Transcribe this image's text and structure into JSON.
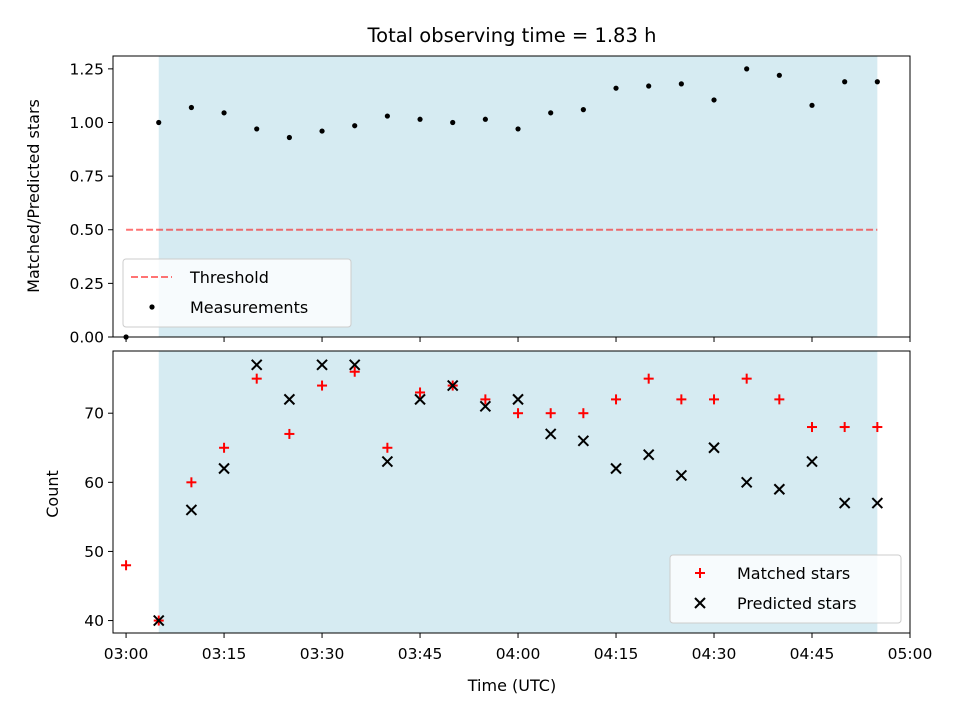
{
  "colors": {
    "shade": "#add8e6",
    "threshold": "#ff0000",
    "measurement": "#000000",
    "matched": "#ff0000",
    "predicted": "#000000"
  },
  "chart_data": [
    {
      "type": "scatter",
      "title": "Total observing time = 1.83 h",
      "xlabel": "",
      "ylabel": "Matched/Predicted stars",
      "ylim": [
        0,
        1.31
      ],
      "yticks": [
        "0.00",
        "0.25",
        "0.50",
        "0.75",
        "1.00",
        "1.25"
      ],
      "grid": false,
      "legend": "lower-left",
      "observing_window": [
        "03:05",
        "04:55"
      ],
      "threshold": {
        "name": "Threshold",
        "value": 0.5,
        "x_range": [
          "03:00",
          "04:55"
        ],
        "style": "dashed"
      },
      "series": [
        {
          "name": "Measurements",
          "marker": "dot",
          "points": [
            {
              "x": "03:00",
              "y": 0.0
            },
            {
              "x": "03:05",
              "y": 1.0
            },
            {
              "x": "03:10",
              "y": 1.07
            },
            {
              "x": "03:15",
              "y": 1.045
            },
            {
              "x": "03:20",
              "y": 0.97
            },
            {
              "x": "03:25",
              "y": 0.93
            },
            {
              "x": "03:30",
              "y": 0.96
            },
            {
              "x": "03:35",
              "y": 0.985
            },
            {
              "x": "03:40",
              "y": 1.03
            },
            {
              "x": "03:45",
              "y": 1.015
            },
            {
              "x": "03:50",
              "y": 1.0
            },
            {
              "x": "03:55",
              "y": 1.015
            },
            {
              "x": "04:00",
              "y": 0.97
            },
            {
              "x": "04:05",
              "y": 1.045
            },
            {
              "x": "04:10",
              "y": 1.06
            },
            {
              "x": "04:15",
              "y": 1.16
            },
            {
              "x": "04:20",
              "y": 1.17
            },
            {
              "x": "04:25",
              "y": 1.18
            },
            {
              "x": "04:30",
              "y": 1.105
            },
            {
              "x": "04:35",
              "y": 1.25
            },
            {
              "x": "04:40",
              "y": 1.22
            },
            {
              "x": "04:45",
              "y": 1.08
            },
            {
              "x": "04:50",
              "y": 1.19
            },
            {
              "x": "04:55",
              "y": 1.19
            }
          ]
        }
      ]
    },
    {
      "type": "scatter",
      "title": "",
      "xlabel": "Time (UTC)",
      "ylabel": "Count",
      "ylim": [
        38.2,
        79.0
      ],
      "yticks": [
        "40",
        "50",
        "60",
        "70"
      ],
      "xlim": [
        "02:58",
        "05:00"
      ],
      "xticks": [
        "03:00",
        "03:15",
        "03:30",
        "03:45",
        "04:00",
        "04:15",
        "04:30",
        "04:45",
        "05:00"
      ],
      "grid": false,
      "legend": "lower-right",
      "observing_window": [
        "03:05",
        "04:55"
      ],
      "series": [
        {
          "name": "Matched stars",
          "marker": "plus",
          "points": [
            {
              "x": "03:00",
              "y": 48
            },
            {
              "x": "03:05",
              "y": 40
            },
            {
              "x": "03:10",
              "y": 60
            },
            {
              "x": "03:15",
              "y": 65
            },
            {
              "x": "03:20",
              "y": 75
            },
            {
              "x": "03:25",
              "y": 67
            },
            {
              "x": "03:30",
              "y": 74
            },
            {
              "x": "03:35",
              "y": 76
            },
            {
              "x": "03:40",
              "y": 65
            },
            {
              "x": "03:45",
              "y": 73
            },
            {
              "x": "03:50",
              "y": 74
            },
            {
              "x": "03:55",
              "y": 72
            },
            {
              "x": "04:00",
              "y": 70
            },
            {
              "x": "04:05",
              "y": 70
            },
            {
              "x": "04:10",
              "y": 70
            },
            {
              "x": "04:15",
              "y": 72
            },
            {
              "x": "04:20",
              "y": 75
            },
            {
              "x": "04:25",
              "y": 72
            },
            {
              "x": "04:30",
              "y": 72
            },
            {
              "x": "04:35",
              "y": 75
            },
            {
              "x": "04:40",
              "y": 72
            },
            {
              "x": "04:45",
              "y": 68
            },
            {
              "x": "04:50",
              "y": 68
            },
            {
              "x": "04:55",
              "y": 68
            }
          ]
        },
        {
          "name": "Predicted stars",
          "marker": "x",
          "points": [
            {
              "x": "03:05",
              "y": 40
            },
            {
              "x": "03:10",
              "y": 56
            },
            {
              "x": "03:15",
              "y": 62
            },
            {
              "x": "03:20",
              "y": 77
            },
            {
              "x": "03:25",
              "y": 72
            },
            {
              "x": "03:30",
              "y": 77
            },
            {
              "x": "03:35",
              "y": 77
            },
            {
              "x": "03:40",
              "y": 63
            },
            {
              "x": "03:45",
              "y": 72
            },
            {
              "x": "03:50",
              "y": 74
            },
            {
              "x": "03:55",
              "y": 71
            },
            {
              "x": "04:00",
              "y": 72
            },
            {
              "x": "04:05",
              "y": 67
            },
            {
              "x": "04:10",
              "y": 66
            },
            {
              "x": "04:15",
              "y": 62
            },
            {
              "x": "04:20",
              "y": 64
            },
            {
              "x": "04:25",
              "y": 61
            },
            {
              "x": "04:30",
              "y": 65
            },
            {
              "x": "04:35",
              "y": 60
            },
            {
              "x": "04:40",
              "y": 59
            },
            {
              "x": "04:45",
              "y": 63
            },
            {
              "x": "04:50",
              "y": 57
            },
            {
              "x": "04:55",
              "y": 57
            }
          ]
        }
      ]
    }
  ]
}
